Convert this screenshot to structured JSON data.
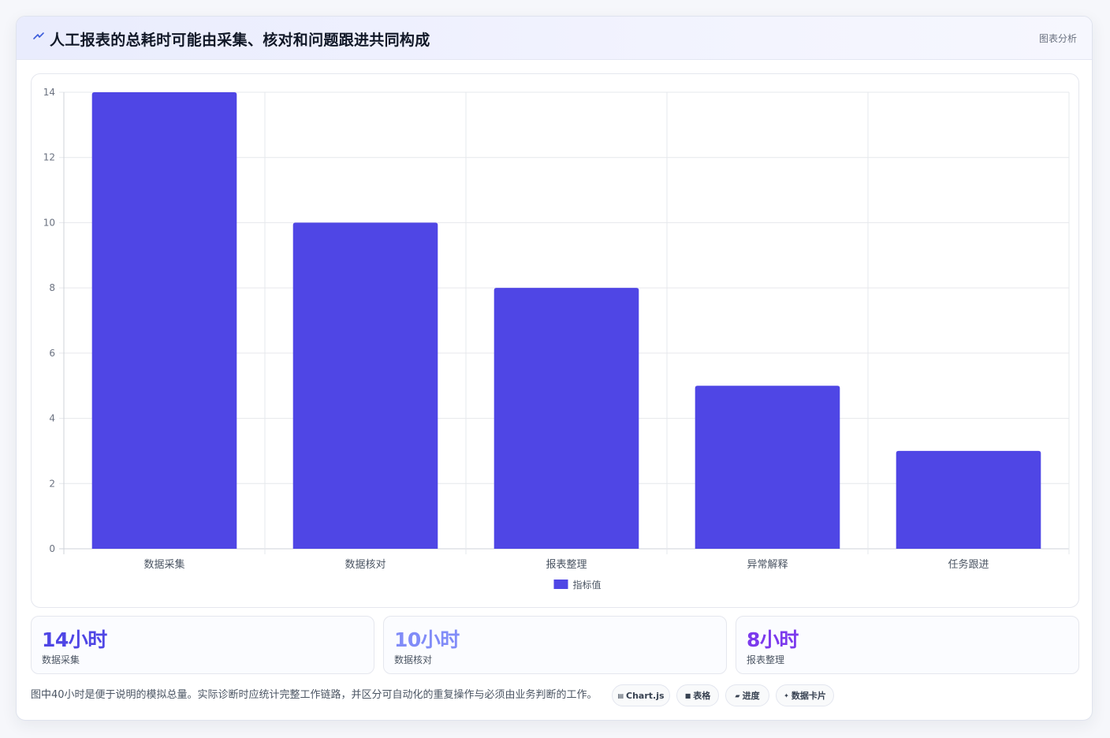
{
  "header": {
    "icon": "lightning-icon",
    "title": "人工报表的总耗时可能由采集、核对和问题跟进共同构成",
    "tag": "图表分析"
  },
  "chart_data": {
    "type": "bar",
    "categories": [
      "数据采集",
      "数据核对",
      "报表整理",
      "异常解释",
      "任务跟进"
    ],
    "series": [
      {
        "name": "指标值",
        "values": [
          14,
          10,
          8,
          5,
          3
        ],
        "color": "#4f46e5"
      }
    ],
    "ylim": [
      0,
      14
    ],
    "yticks": [
      0,
      2,
      4,
      6,
      8,
      10,
      12,
      14
    ],
    "grid": true,
    "legend": "bottom"
  },
  "stats": [
    {
      "value": "14小时",
      "label": "数据采集",
      "color": "#4f46e5"
    },
    {
      "value": "10小时",
      "label": "数据核对",
      "color": "#818cf8"
    },
    {
      "value": "8小时",
      "label": "报表整理",
      "color": "#7c3aed"
    }
  ],
  "footnote": "图中40小时是便于说明的模拟总量。实际诊断时应统计完整工作链路，并区分可自动化的重复操作与必须由业务判断的工作。",
  "pills": [
    {
      "icon": "chart-icon",
      "glyph": "▤",
      "label": "Chart.js"
    },
    {
      "icon": "table-icon",
      "glyph": "■",
      "label": "表格"
    },
    {
      "icon": "progress-icon",
      "glyph": "▰",
      "label": "进度"
    },
    {
      "icon": "sparkle-icon",
      "glyph": "✦",
      "label": "数据卡片"
    }
  ]
}
